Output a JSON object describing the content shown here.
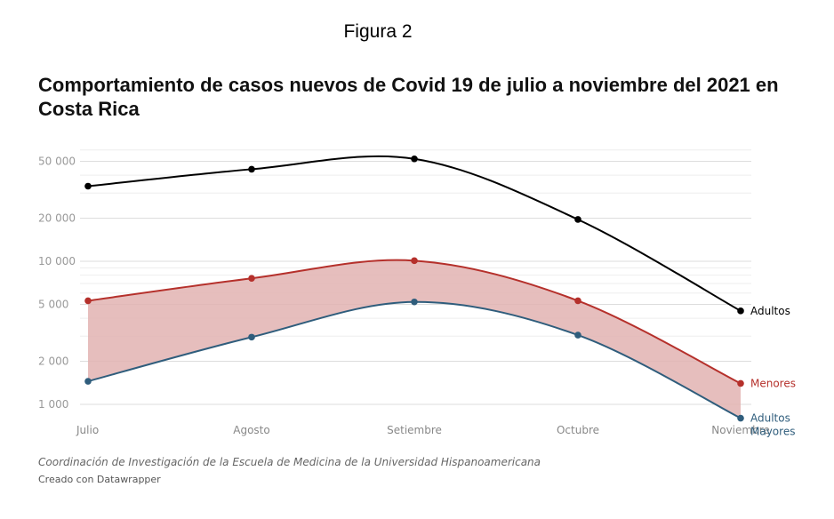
{
  "figure_label": "Figura 2",
  "source_note": "Coordinación de Investigación de la Escuela de Medicina de la Universidad Hispanoamericana",
  "credit": "Creado con Datawrapper",
  "chart_data": {
    "type": "line",
    "title": "Comportamiento de casos nuevos de Covid 19 de julio a noviembre del 2021 en Costa Rica",
    "xlabel": "",
    "ylabel": "",
    "y_scale": "log",
    "ylim": [
      1000,
      60000
    ],
    "y_ticks": [
      1000,
      2000,
      5000,
      10000,
      20000,
      50000
    ],
    "y_tick_labels": [
      "1 000",
      "2 000",
      "5 000",
      "10 000",
      "20 000",
      "50 000"
    ],
    "categories": [
      "Julio",
      "Agosto",
      "Setiembre",
      "Octubre",
      "Noviembre"
    ],
    "series": [
      {
        "name": "Adultos",
        "color": "#000000",
        "values": [
          33500,
          44000,
          52000,
          19600,
          4500
        ]
      },
      {
        "name": "Menores",
        "color": "#b5302b",
        "values": [
          5300,
          7600,
          10100,
          5300,
          1400
        ]
      },
      {
        "name": "Adultos Mayores",
        "color": "#2f5d7c",
        "values": [
          1450,
          2950,
          5200,
          3050,
          800
        ]
      }
    ],
    "shaded_area": {
      "between": [
        "Menores",
        "Adultos Mayores"
      ],
      "color": "#e2b3b2"
    },
    "grid": true,
    "legend": "end-labels"
  }
}
